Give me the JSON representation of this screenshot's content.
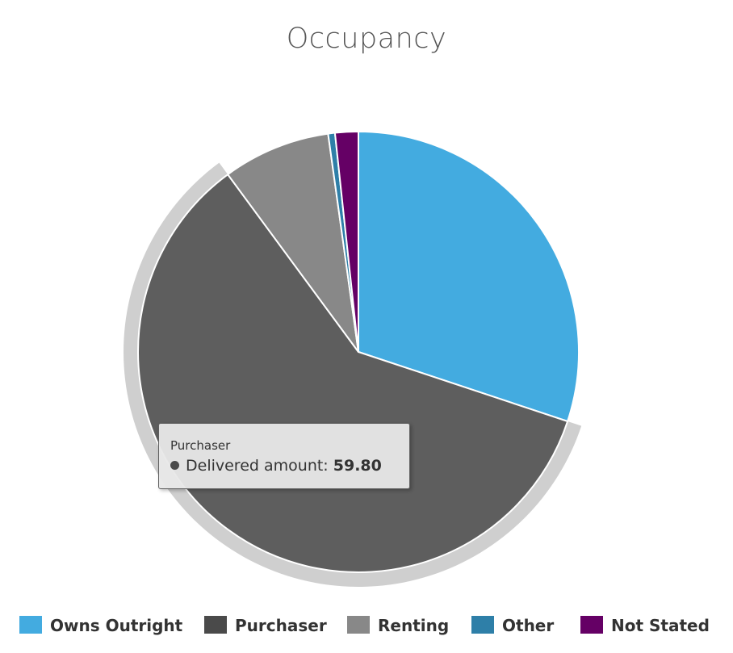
{
  "chart_data": {
    "type": "pie",
    "title": "Occupancy",
    "categories": [
      "Owns Outright",
      "Purchaser",
      "Renting",
      "Other",
      "Not Stated"
    ],
    "series": [
      {
        "name": "Delivered amount",
        "values": [
          30.1,
          59.8,
          7.9,
          0.5,
          1.7
        ]
      }
    ],
    "colors": [
      "#43ABE0",
      "#5E5E5E",
      "#888888",
      "#2E7FA8",
      "#650065"
    ],
    "highlighted": "Purchaser",
    "legend": "bottom"
  },
  "tooltip": {
    "category": "Purchaser",
    "series_label": "Delivered amount:",
    "value": "59.80"
  },
  "legend_items": [
    {
      "label": "Owns Outright",
      "color": "#43ABE0"
    },
    {
      "label": "Purchaser",
      "color": "#4A4A4A"
    },
    {
      "label": "Renting",
      "color": "#888888"
    },
    {
      "label": "Other",
      "color": "#2E7FA8"
    },
    {
      "label": "Not Stated",
      "color": "#650065"
    }
  ]
}
